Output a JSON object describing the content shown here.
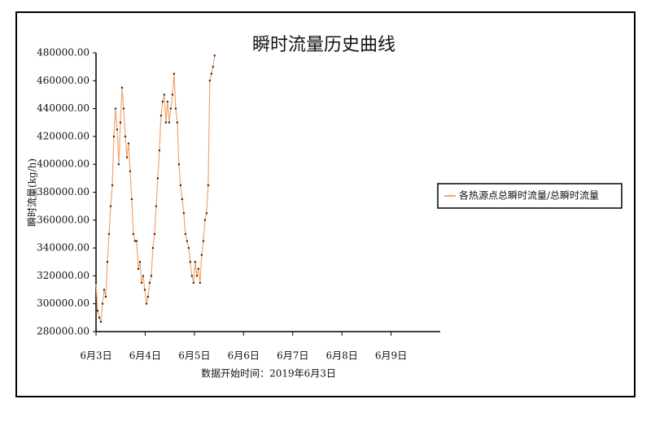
{
  "chart_data": {
    "type": "line",
    "title": "瞬时流量历史曲线",
    "x_label": "数据开始时间：2019年6月3日",
    "y_label": "瞬时流量(kg/h)",
    "xlim": [
      3,
      10
    ],
    "xticks": [
      {
        "value": 3,
        "label": "6月3日"
      },
      {
        "value": 4,
        "label": "6月4日"
      },
      {
        "value": 5,
        "label": "6月5日"
      },
      {
        "value": 6,
        "label": "6月6日"
      },
      {
        "value": 7,
        "label": "6月7日"
      },
      {
        "value": 8,
        "label": "6月8日"
      },
      {
        "value": 9,
        "label": "6月9日"
      }
    ],
    "ylim": [
      280000,
      480000
    ],
    "yticks": [
      {
        "value": 280000,
        "label": "280000.00"
      },
      {
        "value": 300000,
        "label": "300000.00"
      },
      {
        "value": 320000,
        "label": "320000.00"
      },
      {
        "value": 340000,
        "label": "340000.00"
      },
      {
        "value": 360000,
        "label": "360000.00"
      },
      {
        "value": 380000,
        "label": "380000.00"
      },
      {
        "value": 400000,
        "label": "400000.00"
      },
      {
        "value": 420000,
        "label": "420000.00"
      },
      {
        "value": 440000,
        "label": "440000.00"
      },
      {
        "value": 460000,
        "label": "460000.00"
      },
      {
        "value": 480000,
        "label": "480000.00"
      }
    ],
    "legend": "right",
    "x": [
      3.0,
      3.033,
      3.066,
      3.099,
      3.132,
      3.165,
      3.198,
      3.231,
      3.264,
      3.298,
      3.331,
      3.364,
      3.397,
      3.43,
      3.463,
      3.496,
      3.529,
      3.562,
      3.595,
      3.628,
      3.661,
      3.694,
      3.727,
      3.76,
      3.793,
      3.826,
      3.86,
      3.893,
      3.926,
      3.959,
      3.992,
      4.025,
      4.058,
      4.091,
      4.124,
      4.157,
      4.19,
      4.223,
      4.256,
      4.289,
      4.322,
      4.355,
      4.388,
      4.421,
      4.455,
      4.488,
      4.521,
      4.554,
      4.587,
      4.62,
      4.653,
      4.686,
      4.719,
      4.752,
      4.785,
      4.818,
      4.851,
      4.884,
      4.917,
      4.95,
      4.983,
      5.017,
      5.05,
      5.083,
      5.116,
      5.149,
      5.182,
      5.215,
      5.248,
      5.281,
      5.314,
      5.347,
      5.38,
      5.413
    ],
    "series": [
      {
        "name": "各热源点总瞬时流量/总瞬时流量",
        "color": "#f4a46a",
        "marker_color": "#222222",
        "values": [
          315000,
          295000,
          290000,
          287000,
          300000,
          310000,
          305000,
          330000,
          350000,
          370000,
          385000,
          420000,
          440000,
          425000,
          400000,
          430000,
          455000,
          440000,
          420000,
          405000,
          415000,
          395000,
          375000,
          350000,
          345000,
          345000,
          325000,
          330000,
          315000,
          320000,
          310000,
          300000,
          305000,
          315000,
          320000,
          340000,
          350000,
          370000,
          390000,
          410000,
          435000,
          445000,
          450000,
          430000,
          445000,
          430000,
          440000,
          450000,
          465000,
          440000,
          430000,
          400000,
          385000,
          375000,
          365000,
          350000,
          345000,
          340000,
          330000,
          320000,
          315000,
          330000,
          320000,
          325000,
          315000,
          335000,
          345000,
          360000,
          365000,
          385000,
          460000,
          465000,
          470000,
          478000
        ]
      }
    ]
  }
}
